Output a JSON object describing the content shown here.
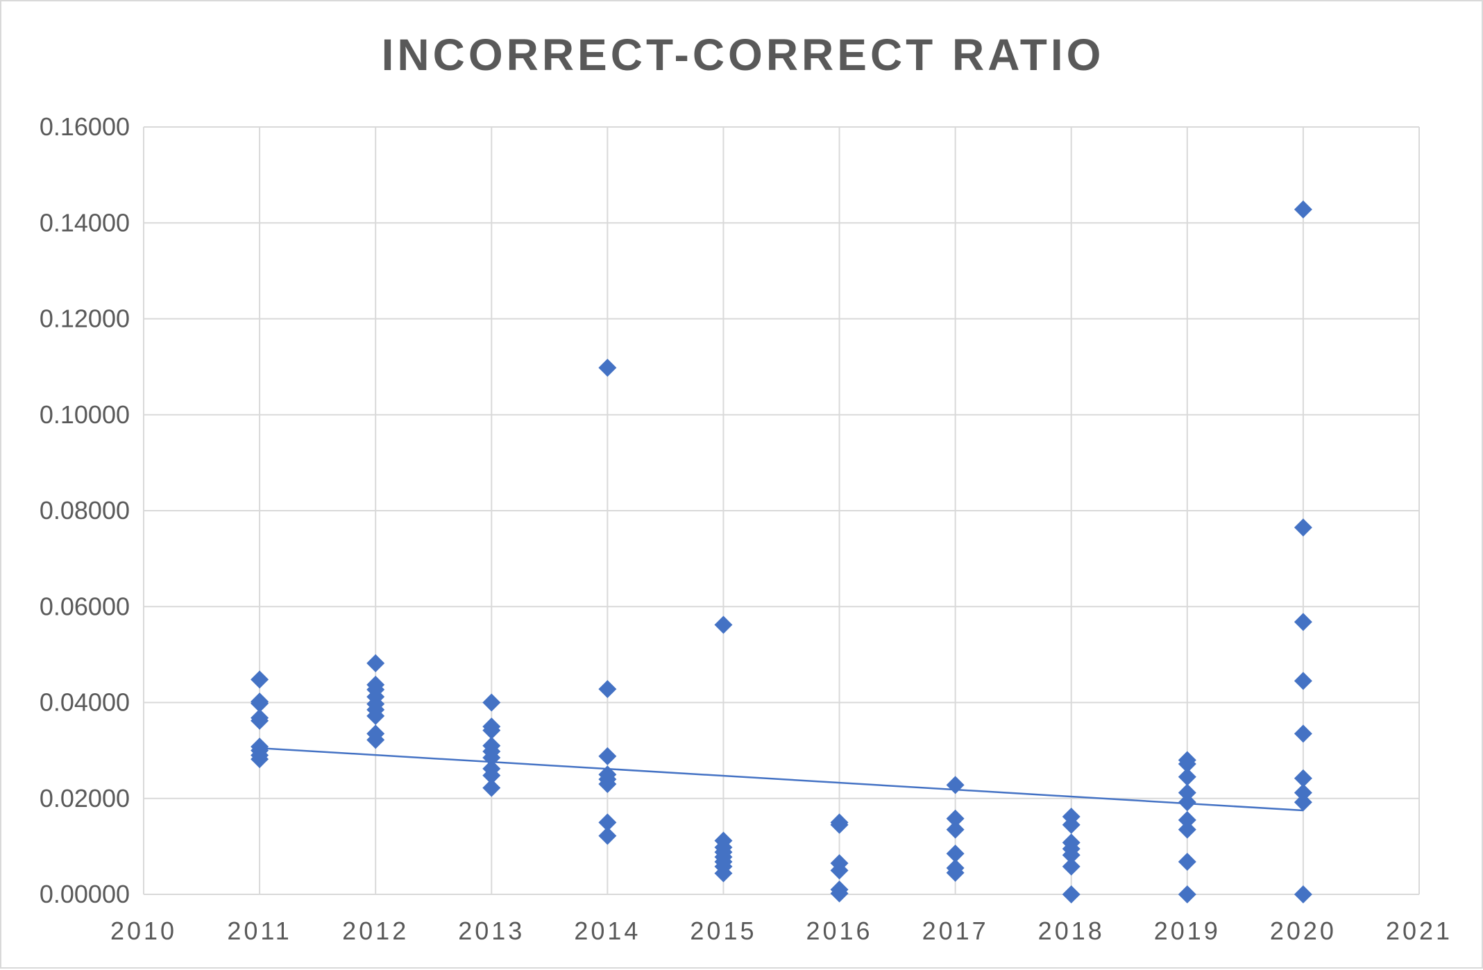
{
  "chart_data": {
    "type": "scatter",
    "title": "INCORRECT-CORRECT RATIO",
    "xlabel": "",
    "ylabel": "",
    "xlim": [
      2010,
      2021
    ],
    "ylim": [
      0,
      0.16
    ],
    "x_ticks": [
      "2010",
      "2011",
      "2012",
      "2013",
      "2014",
      "2015",
      "2016",
      "2017",
      "2018",
      "2019",
      "2020",
      "2021"
    ],
    "y_ticks": [
      "0.00000",
      "0.02000",
      "0.04000",
      "0.06000",
      "0.08000",
      "0.10000",
      "0.12000",
      "0.14000",
      "0.16000"
    ],
    "grid": true,
    "legend": "none",
    "marker": "diamond",
    "marker_color": "#4472c4",
    "trendline": {
      "type": "linear",
      "color": "#4472c4",
      "from": [
        2011,
        0.0305
      ],
      "to": [
        2020,
        0.0175
      ]
    },
    "series": [
      {
        "points": [
          [
            2011,
            0.0448
          ],
          [
            2011,
            0.0402
          ],
          [
            2011,
            0.0398
          ],
          [
            2011,
            0.0368
          ],
          [
            2011,
            0.0362
          ],
          [
            2011,
            0.0308
          ],
          [
            2011,
            0.03
          ],
          [
            2011,
            0.029
          ],
          [
            2011,
            0.0282
          ],
          [
            2012,
            0.0482
          ],
          [
            2012,
            0.0437
          ],
          [
            2012,
            0.0427
          ],
          [
            2012,
            0.0412
          ],
          [
            2012,
            0.0397
          ],
          [
            2012,
            0.0385
          ],
          [
            2012,
            0.0372
          ],
          [
            2012,
            0.0335
          ],
          [
            2012,
            0.0322
          ],
          [
            2013,
            0.04
          ],
          [
            2013,
            0.035
          ],
          [
            2013,
            0.0342
          ],
          [
            2013,
            0.031
          ],
          [
            2013,
            0.0298
          ],
          [
            2013,
            0.0285
          ],
          [
            2013,
            0.0262
          ],
          [
            2013,
            0.0248
          ],
          [
            2013,
            0.0222
          ],
          [
            2014,
            0.1098
          ],
          [
            2014,
            0.0428
          ],
          [
            2014,
            0.0288
          ],
          [
            2014,
            0.025
          ],
          [
            2014,
            0.024
          ],
          [
            2014,
            0.023
          ],
          [
            2014,
            0.015
          ],
          [
            2014,
            0.0122
          ],
          [
            2015,
            0.0562
          ],
          [
            2015,
            0.0112
          ],
          [
            2015,
            0.0098
          ],
          [
            2015,
            0.0088
          ],
          [
            2015,
            0.0078
          ],
          [
            2015,
            0.0068
          ],
          [
            2015,
            0.0058
          ],
          [
            2015,
            0.0044
          ],
          [
            2016,
            0.015
          ],
          [
            2016,
            0.0145
          ],
          [
            2016,
            0.0065
          ],
          [
            2016,
            0.005
          ],
          [
            2016,
            0.001
          ],
          [
            2016,
            0.0002
          ],
          [
            2017,
            0.0228
          ],
          [
            2017,
            0.0158
          ],
          [
            2017,
            0.0135
          ],
          [
            2017,
            0.0085
          ],
          [
            2017,
            0.0055
          ],
          [
            2017,
            0.0045
          ],
          [
            2018,
            0.0162
          ],
          [
            2018,
            0.0145
          ],
          [
            2018,
            0.0108
          ],
          [
            2018,
            0.0095
          ],
          [
            2018,
            0.0082
          ],
          [
            2018,
            0.0058
          ],
          [
            2018,
            0.0
          ],
          [
            2019,
            0.028
          ],
          [
            2019,
            0.0272
          ],
          [
            2019,
            0.0245
          ],
          [
            2019,
            0.0212
          ],
          [
            2019,
            0.0192
          ],
          [
            2019,
            0.0155
          ],
          [
            2019,
            0.0135
          ],
          [
            2019,
            0.0068
          ],
          [
            2019,
            0.0
          ],
          [
            2020,
            0.1428
          ],
          [
            2020,
            0.0765
          ],
          [
            2020,
            0.0568
          ],
          [
            2020,
            0.0445
          ],
          [
            2020,
            0.0335
          ],
          [
            2020,
            0.0242
          ],
          [
            2020,
            0.0212
          ],
          [
            2020,
            0.0192
          ],
          [
            2020,
            0.0
          ]
        ]
      }
    ]
  }
}
